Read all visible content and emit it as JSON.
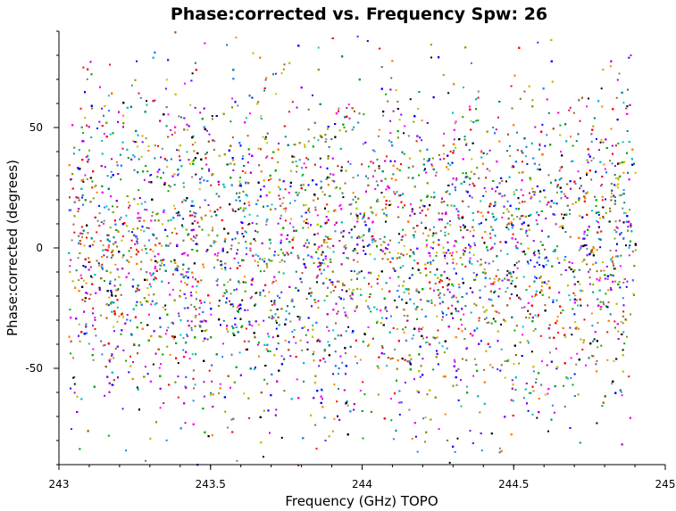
{
  "chart_data": {
    "type": "scatter",
    "title": "Phase:corrected vs. Frequency Spw: 26",
    "xlabel": "Frequency (GHz) TOPO",
    "ylabel": "Phase:corrected (degrees)",
    "xlim": [
      243,
      245
    ],
    "ylim": [
      -90,
      90
    ],
    "x_data_range": [
      243.03,
      244.9
    ],
    "x_ticks": [
      243,
      243.5,
      244,
      244.5,
      245
    ],
    "x_tick_labels": [
      "243",
      "243.5",
      "244",
      "244.5",
      "245"
    ],
    "y_ticks": [
      -50,
      0,
      50
    ],
    "y_tick_labels": [
      "-50",
      "0",
      "50"
    ],
    "grid": false,
    "legend": "none",
    "point_colors": [
      "#ff0000",
      "#00aa00",
      "#0000ff",
      "#00c0c0",
      "#c000c0",
      "#c0c000",
      "#000000",
      "#ff8000",
      "#808080",
      "#008080",
      "#8000ff",
      "#80a000",
      "#a06020",
      "#ff00ff",
      "#2080ff"
    ],
    "distribution": {
      "y_center": 0,
      "y_spread_deg": 35,
      "note_band": "dense cloud centered near 0 degrees spanning roughly -90 to 90"
    }
  }
}
